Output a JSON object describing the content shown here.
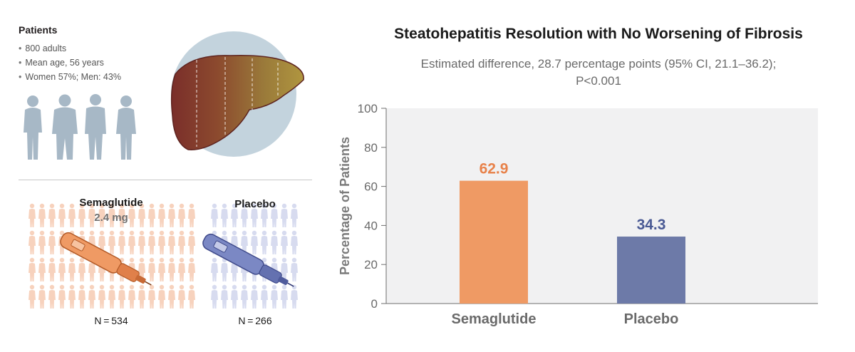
{
  "patients": {
    "title": "Patients",
    "items": [
      "800 adults",
      "Mean age, 56 years",
      "Women 57%; Men: 43%"
    ]
  },
  "arms": {
    "semaglutide": {
      "name": "Semaglutide",
      "dose": "2.4 mg",
      "n": "N = 534",
      "color": "#ef9a64"
    },
    "placebo": {
      "name": "Placebo",
      "n": "N = 266",
      "color": "#7b88c4"
    }
  },
  "icons": [
    "people-silhouettes-icon",
    "liver-icon",
    "crowd-icon",
    "injection-pen-icon"
  ],
  "chart_data": {
    "type": "bar",
    "title": "Steatohepatitis Resolution with No Worsening of Fibrosis",
    "subtitle_line1": "Estimated difference, 28.7 percentage points (95% CI, 21.1–36.2);",
    "subtitle_line2": "P<0.001",
    "xlabel": "",
    "ylabel": "Percentage of Patients",
    "ylim": [
      0,
      100
    ],
    "yticks": [
      0,
      20,
      40,
      60,
      80,
      100
    ],
    "grid": false,
    "categories": [
      "Semaglutide",
      "Placebo"
    ],
    "values": [
      62.9,
      34.3
    ],
    "value_labels": [
      "62.9",
      "34.3"
    ],
    "bar_colors": [
      "#ef9a64",
      "#6d7aa8"
    ],
    "label_colors": [
      "#e8824a",
      "#4a5a94"
    ],
    "plot_background": "#f1f1f2"
  }
}
